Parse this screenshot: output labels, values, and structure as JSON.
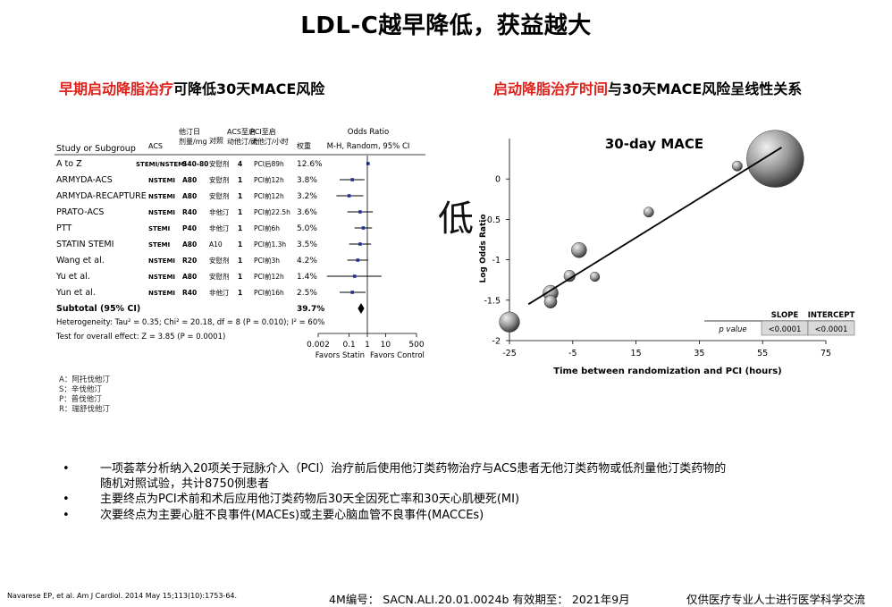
{
  "title": "LDL-C越早降低，获益越大",
  "left_subtitle": {
    "red": "早期启动降脂治疗",
    "black": "可降低30天MACE风险"
  },
  "right_subtitle": {
    "red": "启动降脂治疗时间",
    "black": "与30天MACE风险呈线性关系"
  },
  "stray_glyph": "低",
  "chart_data": [
    {
      "type": "table",
      "headers": [
        "Study or Subgroup",
        "ACS",
        "他汀日剂量/mg",
        "对照",
        "ACS至启动他汀/天",
        "PCI至启动他汀/小时",
        "权重",
        "Odds Ratio M-H, Random, 95% CI"
      ],
      "ratio_header": {
        "line1": "Odds Ratio",
        "line2": "M-H, Random, 95% CI"
      },
      "rows": [
        {
          "study": "A to Z",
          "acs": "STEMI/NSTEMI",
          "dose": "S40-80",
          "control": "安慰剂",
          "acs_days": "4",
          "pci_hours": "PCI后89h",
          "weight": "12.6%",
          "or": 1.1,
          "lo": 1.06,
          "hi": 1.15
        },
        {
          "study": "ARMYDA-ACS",
          "acs": "NSTEMI",
          "dose": "A80",
          "control": "安慰剂",
          "acs_days": "1",
          "pci_hours": "PCI前12h",
          "weight": "3.8%",
          "or": 0.15,
          "lo": 0.03,
          "hi": 0.7
        },
        {
          "study": "ARMYDA-RECAPTURE",
          "acs": "NSTEMI",
          "dose": "A80",
          "control": "安慰剂",
          "acs_days": "1",
          "pci_hours": "PCI前12h",
          "weight": "3.2%",
          "or": 0.1,
          "lo": 0.02,
          "hi": 0.6
        },
        {
          "study": "PRATO-ACS",
          "acs": "NSTEMI",
          "dose": "R40",
          "control": "非他汀",
          "acs_days": "1",
          "pci_hours": "PCI前22.5h",
          "weight": "3.6%",
          "or": 0.4,
          "lo": 0.08,
          "hi": 2.0
        },
        {
          "study": "PTT",
          "acs": "STEMI",
          "dose": "P40",
          "control": "非他汀",
          "acs_days": "1",
          "pci_hours": "PCI前6h",
          "weight": "5.0%",
          "or": 0.6,
          "lo": 0.2,
          "hi": 1.8
        },
        {
          "study": "STATIN STEMI",
          "acs": "STEMI",
          "dose": "A80",
          "control": "A10",
          "acs_days": "1",
          "pci_hours": "PCI前1.3h",
          "weight": "3.5%",
          "or": 0.4,
          "lo": 0.1,
          "hi": 1.6
        },
        {
          "study": "Wang et al.",
          "acs": "NSTEMI",
          "dose": "R20",
          "control": "安慰剂",
          "acs_days": "1",
          "pci_hours": "PCI前3h",
          "weight": "4.2%",
          "or": 0.3,
          "lo": 0.08,
          "hi": 1.1
        },
        {
          "study": "Yu et al.",
          "acs": "NSTEMI",
          "dose": "A80",
          "control": "安慰剂",
          "acs_days": "1",
          "pci_hours": "PCI前12h",
          "weight": "1.4%",
          "or": 0.2,
          "lo": 0.006,
          "hi": 6.0
        },
        {
          "study": "Yun et al.",
          "acs": "NSTEMI",
          "dose": "R40",
          "control": "非他汀",
          "acs_days": "1",
          "pci_hours": "PCI前16h",
          "weight": "2.5%",
          "or": 0.15,
          "lo": 0.03,
          "hi": 0.8
        }
      ],
      "subtotal": {
        "label": "Subtotal (95% CI)",
        "weight": "39.7%",
        "or": 0.45,
        "lo": 0.3,
        "hi": 0.68
      },
      "heterogeneity": "Heterogeneity: Tau² = 0.35; Chi² = 20.18, df = 8 (P = 0.010); I² = 60%",
      "overall_effect": "Test for overall effect: Z = 3.85 (P = 0.0001)",
      "x_scale": "log",
      "x_ticks": [
        {
          "v": 0.002,
          "label": "0.002"
        },
        {
          "v": 0.1,
          "label": "0.1"
        },
        {
          "v": 1,
          "label": "1"
        },
        {
          "v": 10,
          "label": "10"
        },
        {
          "v": 500,
          "label": "500"
        }
      ],
      "xlim": [
        0.002,
        500
      ],
      "favors_left": "Favors Statin",
      "favors_right": "Favors Control"
    },
    {
      "type": "scatter",
      "title": "30-day MACE",
      "xlabel": "Time between randomization and PCI (hours)",
      "ylabel": "Log Odds Ratio",
      "xlim": [
        -25,
        75
      ],
      "ylim": [
        -2,
        0.5
      ],
      "x_ticks": [
        -25,
        -5,
        15,
        35,
        55,
        75
      ],
      "y_ticks": [
        0,
        -0.5,
        -1,
        -1.5,
        -2
      ],
      "points": [
        {
          "x": -25,
          "y": -1.77,
          "size": 3.2
        },
        {
          "x": -12,
          "y": -1.41,
          "size": 2.4
        },
        {
          "x": -12,
          "y": -1.52,
          "size": 2.0
        },
        {
          "x": -6,
          "y": -1.2,
          "size": 1.8
        },
        {
          "x": -3,
          "y": -0.88,
          "size": 2.4
        },
        {
          "x": 2,
          "y": -1.21,
          "size": 1.5
        },
        {
          "x": 19,
          "y": -0.41,
          "size": 1.6
        },
        {
          "x": 47,
          "y": 0.16,
          "size": 1.6
        },
        {
          "x": 59,
          "y": 0.25,
          "size": 9.0
        }
      ],
      "trend": {
        "x1": -19,
        "y1": -1.55,
        "x2": 61,
        "y2": 0.39
      },
      "table": {
        "headers": [
          "",
          "SLOPE",
          "INTERCEPT"
        ],
        "row_label": "p value",
        "values": [
          "<0.0001",
          "<0.0001"
        ]
      }
    }
  ],
  "drug_legend": [
    "A：阿托伐他汀",
    "S：辛伐他汀",
    "P：普伐他汀",
    "R：瑞舒伐他汀"
  ],
  "bullets": [
    {
      "line1": "一项荟萃分析纳入20项关于冠脉介入（PCI）治疗前后使用他汀类药物治疗与ACS患者无他汀类药物或低剂量他汀类药物的",
      "line2": "随机对照试验，共计8750例患者"
    },
    {
      "line1": "主要终点为PCI术前和术后应用他汀类药物后30天全因死亡率和30天心肌梗死(MI)",
      "line2": ""
    },
    {
      "line1": "次要终点为主要心脏不良事件(MACEs)或主要心脑血管不良事件(MACCEs)",
      "line2": ""
    }
  ],
  "citation": "Navarese EP, et al. Am J Cardiol. 2014 May 15;113(10):1753-64.",
  "footer_code": "4M编号： SACN.ALI.20.01.0024b  有效期至： 2021年9月",
  "footer_right": "仅供医疗专业人士进行医学科学交流"
}
